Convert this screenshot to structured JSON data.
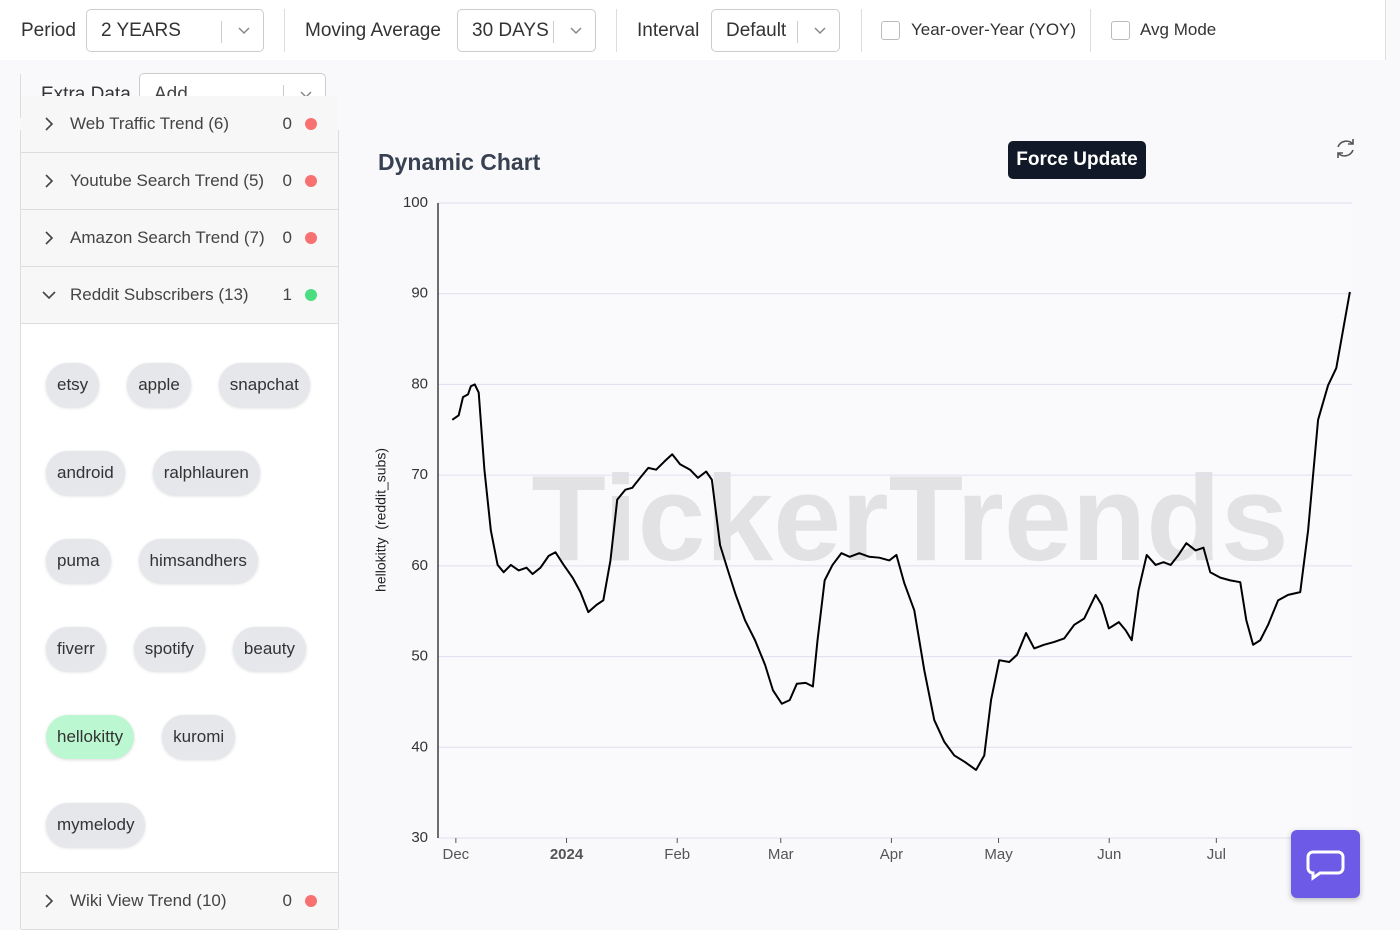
{
  "toolbar": {
    "period_label": "Period",
    "period_value": "2 YEARS",
    "ma_label": "Moving Average",
    "ma_value": "30 DAYS",
    "interval_label": "Interval",
    "interval_value": "Default",
    "yoy_label": "Year-over-Year (YOY)",
    "avg_label": "Avg Mode",
    "extra_label": "Extra Data",
    "extra_placeholder": "Add..."
  },
  "sidebar": {
    "sections_above": [
      {
        "name": "Web Traffic Trend (6)",
        "count": 0,
        "color": "#f87171"
      },
      {
        "name": "Youtube Search Trend (5)",
        "count": 0,
        "color": "#f87171"
      },
      {
        "name": "Amazon Search Trend (7)",
        "count": 0,
        "color": "#f87171"
      },
      {
        "name": "Reddit Subscribers (13)",
        "count": 1,
        "color": "#4ade80"
      }
    ],
    "tag_rows": [
      [
        "etsy",
        "apple",
        "snapchat"
      ],
      [
        "android",
        "ralphlauren"
      ],
      [
        "puma",
        "himsandhers"
      ],
      [
        "fiverr",
        "spotify",
        "beauty"
      ],
      [
        "hellokitty",
        "kuromi"
      ],
      [
        "mymelody"
      ]
    ],
    "selected_tag": "hellokitty",
    "sections_below": [
      {
        "name": "Wiki View Trend (10)",
        "count": 0,
        "color": "#f87171"
      }
    ]
  },
  "chart_panel": {
    "button": "Force Update"
  },
  "chart_data": {
    "type": "line",
    "title": "Dynamic Chart",
    "y_label": "hellokitty  (reddit_subs)",
    "watermark": "TickerTrends",
    "color": "#000000",
    "x": [
      -1,
      0.8,
      2,
      3.4,
      4.2,
      5.3,
      6.4,
      8,
      9.8,
      11.7,
      13.4,
      15.4,
      17.6,
      19.8,
      21.5,
      23.7,
      26,
      27.9,
      30.2,
      32.7,
      34.9,
      37.1,
      39.4,
      41.3,
      43.3,
      45.2,
      47.5,
      49.4,
      51.6,
      53.9,
      56.1,
      58.4,
      60.6,
      62.8,
      65.6,
      67.8,
      70.1,
      71.7,
      74,
      76.2,
      78.4,
      81,
      83.8,
      86.6,
      88.8,
      91.3,
      93.5,
      95.5,
      98,
      100,
      101.3,
      103.3,
      105.5,
      108,
      110.3,
      113,
      115.8,
      118.6,
      121.4,
      123.4,
      125.6,
      128.4,
      131.2,
      134,
      136.8,
      139.6,
      142.5,
      145.7,
      148,
      149.9,
      152.2,
      155,
      157.2,
      159.7,
      162,
      164.7,
      167.5,
      170.4,
      173.2,
      176,
      179.2,
      180.9,
      182.9,
      185.7,
      187.6,
      189.3,
      191.2,
      193.5,
      196,
      198.2,
      200.2,
      202.4,
      204.6,
      207.2,
      209.4,
      211.3,
      214.1,
      216.9,
      219.7,
      221.4,
      223.3,
      225.3,
      227.5,
      230.3,
      233.1,
      236.5,
      238.7,
      241.5,
      244.3,
      246.6,
      248.5,
      250.4
    ],
    "values": [
      76.1,
      76.6,
      78.6,
      78.9,
      79.8,
      80.0,
      79.1,
      70.6,
      63.9,
      60.1,
      59.3,
      60.1,
      59.5,
      59.8,
      59.1,
      59.8,
      61.1,
      61.5,
      60.1,
      58.7,
      57.1,
      54.9,
      55.7,
      56.2,
      60.6,
      67.3,
      68.4,
      68.6,
      69.7,
      70.8,
      70.6,
      71.5,
      72.3,
      71.2,
      70.6,
      69.7,
      70.4,
      69.5,
      62.3,
      59.5,
      56.8,
      54.0,
      51.8,
      49.1,
      46.3,
      44.8,
      45.2,
      47.0,
      47.1,
      46.7,
      51.8,
      58.4,
      60.1,
      61.4,
      61.0,
      61.4,
      61.0,
      60.9,
      60.6,
      61.2,
      58.1,
      55.1,
      48.5,
      43.0,
      40.6,
      39.1,
      38.4,
      37.5,
      39.1,
      45.2,
      49.6,
      49.4,
      50.2,
      52.6,
      50.9,
      51.3,
      51.6,
      52.0,
      53.5,
      54.2,
      56.8,
      55.7,
      53.1,
      53.8,
      52.9,
      51.8,
      57.3,
      61.2,
      60.1,
      60.4,
      60.1,
      61.2,
      62.5,
      61.7,
      62.0,
      59.3,
      58.7,
      58.4,
      58.2,
      54.0,
      51.3,
      51.8,
      53.5,
      56.2,
      56.8,
      57.1,
      63.9,
      76.1,
      79.9,
      81.8,
      86.0,
      90.2
    ],
    "xlim": [
      -5,
      251
    ],
    "xticks": [
      {
        "value": 0,
        "label": "Dec"
      },
      {
        "value": 31,
        "label": "2024"
      },
      {
        "value": 62,
        "label": "Feb"
      },
      {
        "value": 91,
        "label": "Mar"
      },
      {
        "value": 122,
        "label": "Apr"
      },
      {
        "value": 152,
        "label": "May"
      },
      {
        "value": 183,
        "label": "Jun"
      },
      {
        "value": 213,
        "label": "Jul"
      }
    ],
    "ylim": [
      30,
      100
    ],
    "yticks": [
      30,
      40,
      50,
      60,
      70,
      80,
      90,
      100
    ],
    "grid": true
  }
}
